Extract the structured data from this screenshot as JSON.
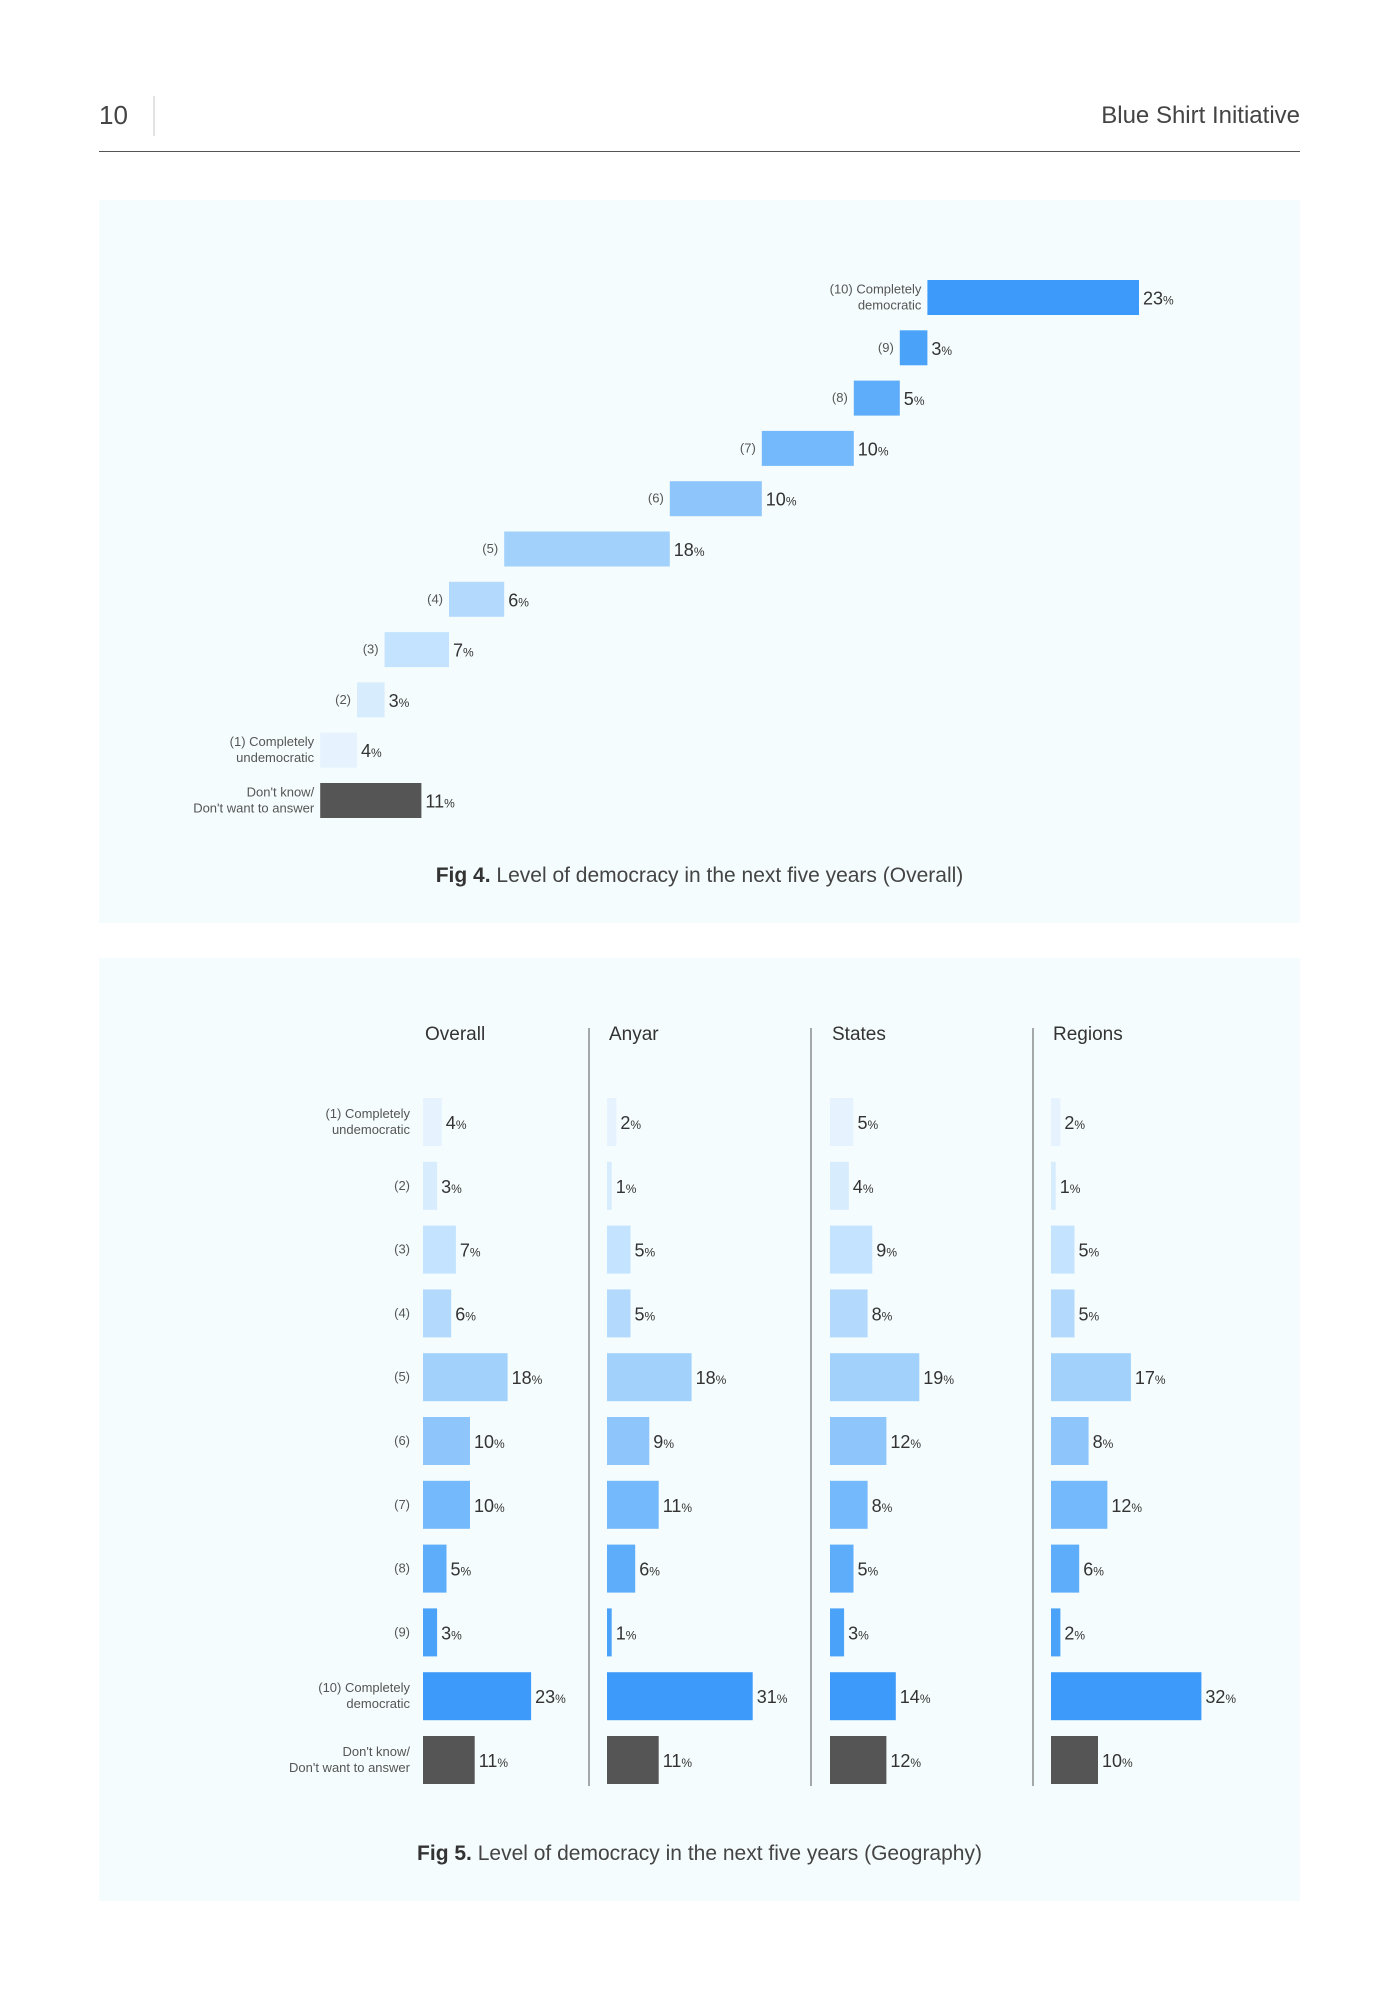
{
  "header": {
    "page_number": "10",
    "title": "Blue Shirt Initiative"
  },
  "figures": {
    "fig4": {
      "label": "Fig 4.",
      "caption": "Level of democracy in the next five years (Overall)"
    },
    "fig5": {
      "label": "Fig 5.",
      "caption": "Level of democracy in the next five years (Geography)"
    }
  },
  "colors": {
    "scale": [
      "#e6f3fe",
      "#d7ecfd",
      "#c4e3fe",
      "#b3dafd",
      "#a2d1fc",
      "#8ec6fb",
      "#74b9fb",
      "#5eadfa",
      "#4ba3f9",
      "#3d9afa"
    ],
    "dont_know": "#555555",
    "panel_bg": "#f5fcfd"
  },
  "chart_data": [
    {
      "type": "bar",
      "chart": "fig4",
      "orientation": "horizontal-waterfall",
      "categories": [
        "(10) Completely democratic",
        "(9)",
        "(8)",
        "(7)",
        "(6)",
        "(5)",
        "(4)",
        "(3)",
        "(2)",
        "(1) Completely undemocratic",
        "Don't know/ Don't want to answer"
      ],
      "values": [
        23,
        3,
        5,
        10,
        10,
        18,
        6,
        7,
        3,
        4,
        11
      ],
      "unit": "%"
    },
    {
      "type": "bar",
      "chart": "fig5",
      "orientation": "horizontal",
      "categories": [
        "(1) Completely undemocratic",
        "(2)",
        "(3)",
        "(4)",
        "(5)",
        "(6)",
        "(7)",
        "(8)",
        "(9)",
        "(10) Completely democratic",
        "Don't know/ Don't want to answer"
      ],
      "series": [
        {
          "name": "Overall",
          "values": [
            4,
            3,
            7,
            6,
            18,
            10,
            10,
            5,
            3,
            23,
            11
          ]
        },
        {
          "name": "Anyar",
          "values": [
            2,
            1,
            5,
            5,
            18,
            9,
            11,
            6,
            1,
            31,
            11
          ]
        },
        {
          "name": "States",
          "values": [
            5,
            4,
            9,
            8,
            19,
            12,
            8,
            5,
            3,
            14,
            12
          ]
        },
        {
          "name": "Regions",
          "values": [
            2,
            1,
            5,
            5,
            17,
            8,
            12,
            6,
            2,
            32,
            10
          ]
        }
      ],
      "unit": "%"
    }
  ]
}
